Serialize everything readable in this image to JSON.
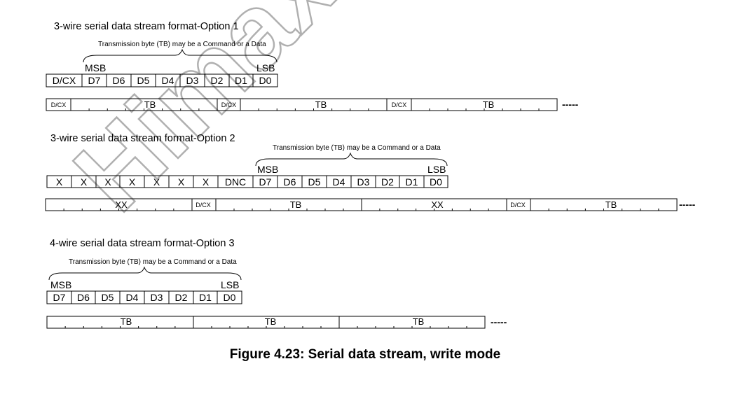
{
  "watermark": {
    "text": "Himax Co. Do Not"
  },
  "sections": [
    {
      "title": "3-wire serial data stream format-Option 1",
      "tb_note": "Transmission byte   (TB)   may be a Command or a Data",
      "msb_label": "MSB",
      "lsb_label": "LSB",
      "byte_cells": [
        "D/CX",
        "D7",
        "D6",
        "D5",
        "D4",
        "D3",
        "D2",
        "D1",
        "D0"
      ],
      "stream_labels": [
        "D/CX",
        "TB",
        "D/CX",
        "TB",
        "D/CX",
        "TB"
      ],
      "continuation": "-----"
    },
    {
      "title": "3-wire serial data stream format-Option 2",
      "tb_note": "Transmission byte  (TB)  may be a Command or a Data",
      "msb_label": "MSB",
      "lsb_label": "LSB",
      "byte_cells": [
        "X",
        "X",
        "X",
        "X",
        "X",
        "X",
        "X",
        "DNC",
        "D7",
        "D6",
        "D5",
        "D4",
        "D3",
        "D2",
        "D1",
        "D0"
      ],
      "stream_labels": [
        "XX",
        "D/CX",
        "TB",
        "XX",
        "D/CX",
        "TB"
      ],
      "continuation": "-----"
    },
    {
      "title": "4-wire serial data stream format-Option 3",
      "tb_note": "Transmission byte  (TB)   may be a Command or a Data",
      "msb_label": "MSB",
      "lsb_label": "LSB",
      "byte_cells": [
        "D7",
        "D6",
        "D5",
        "D4",
        "D3",
        "D2",
        "D1",
        "D0"
      ],
      "stream_labels": [
        "TB",
        "TB",
        "TB"
      ],
      "continuation": "-----"
    }
  ],
  "caption": "Figure 4.23: Serial data stream, write mode"
}
